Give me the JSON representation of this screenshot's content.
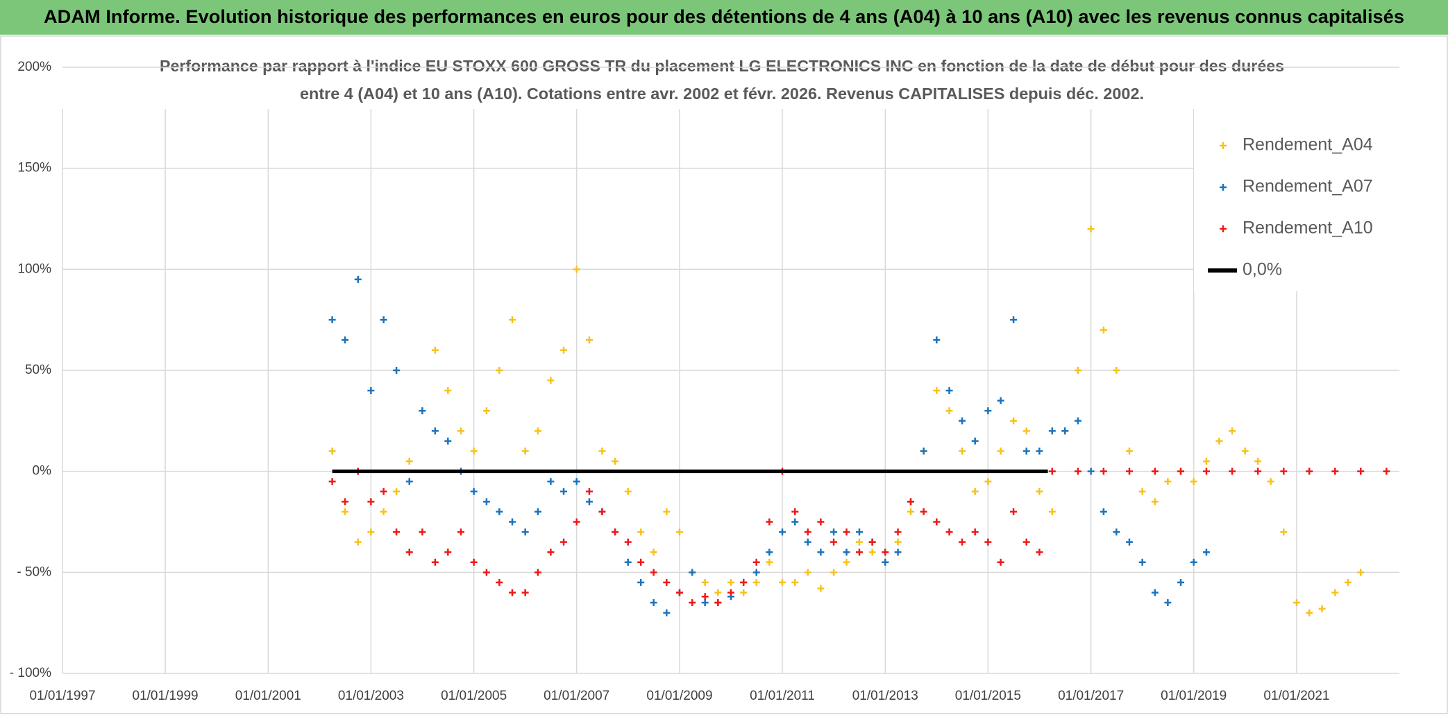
{
  "header": {
    "title": "ADAM Informe. Evolution historique des performances en euros pour des détentions de 4 ans (A04) à 10 ans (A10) avec les revenus connus capitalisés"
  },
  "chart_data": {
    "type": "scatter",
    "subtitle": [
      "Performance par rapport à l'indice EU STOXX 600 GROSS TR  du placement LG ELECTRONICS INC en fonction de la date de début pour des durées",
      "entre 4 (A04) et 10 ans (A10). Cotations entre avr. 2002 et févr. 2026. Revenus CAPITALISES depuis déc. 2002."
    ],
    "xlim": [
      "1997-01-01",
      "2023-01-01"
    ],
    "xticks": [
      {
        "value": "1997-01-01",
        "label": "01/01/1997"
      },
      {
        "value": "1999-01-01",
        "label": "01/01/1999"
      },
      {
        "value": "2001-01-01",
        "label": "01/01/2001"
      },
      {
        "value": "2003-01-01",
        "label": "01/01/2003"
      },
      {
        "value": "2005-01-01",
        "label": "01/01/2005"
      },
      {
        "value": "2007-01-01",
        "label": "01/01/2007"
      },
      {
        "value": "2009-01-01",
        "label": "01/01/2009"
      },
      {
        "value": "2011-01-01",
        "label": "01/01/2011"
      },
      {
        "value": "2013-01-01",
        "label": "01/01/2013"
      },
      {
        "value": "2015-01-01",
        "label": "01/01/2015"
      },
      {
        "value": "2017-01-01",
        "label": "01/01/2017"
      },
      {
        "value": "2019-01-01",
        "label": "01/01/2019"
      },
      {
        "value": "2021-01-01",
        "label": "01/01/2021"
      }
    ],
    "ylim": [
      -100,
      200
    ],
    "yticks": [
      {
        "value": -100,
        "label": "- 100%"
      },
      {
        "value": -50,
        "label": "- 50%"
      },
      {
        "value": 0,
        "label": "0%"
      },
      {
        "value": 50,
        "label": "50%"
      },
      {
        "value": 100,
        "label": "100%"
      },
      {
        "value": 150,
        "label": "150%"
      },
      {
        "value": 200,
        "label": "200%"
      }
    ],
    "grid": true,
    "legend": "upper right",
    "series": [
      {
        "name": "Rendement_A04",
        "color": "#f7c21a",
        "x": [
          "2002-04-01",
          "2002-07-01",
          "2002-10-01",
          "2003-01-01",
          "2003-04-01",
          "2003-07-01",
          "2003-10-01",
          "2004-01-01",
          "2004-04-01",
          "2004-07-01",
          "2004-10-01",
          "2005-01-01",
          "2005-04-01",
          "2005-07-01",
          "2005-10-01",
          "2006-01-01",
          "2006-04-01",
          "2006-07-01",
          "2006-10-01",
          "2007-01-01",
          "2007-04-01",
          "2007-07-01",
          "2007-10-01",
          "2008-01-01",
          "2008-04-01",
          "2008-07-01",
          "2008-10-01",
          "2009-01-01",
          "2009-04-01",
          "2009-07-01",
          "2009-10-01",
          "2010-01-01",
          "2010-04-01",
          "2010-07-01",
          "2010-10-01",
          "2011-01-01",
          "2011-04-01",
          "2011-07-01",
          "2011-10-01",
          "2012-01-01",
          "2012-04-01",
          "2012-07-01",
          "2012-10-01",
          "2013-01-01",
          "2013-04-01",
          "2013-07-01",
          "2013-10-01",
          "2014-01-01",
          "2014-04-01",
          "2014-07-01",
          "2014-10-01",
          "2015-01-01",
          "2015-04-01",
          "2015-07-01",
          "2015-10-01",
          "2016-01-01",
          "2016-04-01",
          "2016-07-01",
          "2016-10-01",
          "2017-01-01",
          "2017-04-01",
          "2017-07-01",
          "2017-10-01",
          "2018-01-01",
          "2018-04-01",
          "2018-07-01",
          "2018-10-01",
          "2019-01-01",
          "2019-04-01",
          "2019-07-01",
          "2019-10-01",
          "2020-01-01",
          "2020-04-01",
          "2020-07-01",
          "2020-10-01",
          "2021-01-01",
          "2021-04-01",
          "2021-07-01",
          "2021-10-01",
          "2022-01-01",
          "2022-04-01"
        ],
        "values": [
          10,
          -20,
          -35,
          -30,
          -20,
          -10,
          5,
          30,
          60,
          40,
          20,
          10,
          30,
          50,
          75,
          10,
          20,
          45,
          60,
          100,
          65,
          10,
          5,
          -10,
          -30,
          -40,
          -20,
          -30,
          -50,
          -55,
          -60,
          -55,
          -60,
          -55,
          -45,
          -55,
          -55,
          -50,
          -58,
          -50,
          -45,
          -35,
          -40,
          -45,
          -35,
          -20,
          10,
          40,
          30,
          10,
          -10,
          -5,
          10,
          25,
          20,
          -10,
          -20,
          20,
          50,
          120,
          70,
          50,
          10,
          -10,
          -15,
          -5,
          0,
          -5,
          5,
          15,
          20,
          10,
          5,
          -5,
          -30,
          -65,
          -70,
          -68,
          -60,
          -55,
          -50
        ]
      },
      {
        "name": "Rendement_A07",
        "color": "#1a73c0",
        "x": [
          "2002-04-01",
          "2002-07-01",
          "2002-10-01",
          "2003-01-01",
          "2003-04-01",
          "2003-07-01",
          "2003-10-01",
          "2004-01-01",
          "2004-04-01",
          "2004-07-01",
          "2004-10-01",
          "2005-01-01",
          "2005-04-01",
          "2005-07-01",
          "2005-10-01",
          "2006-01-01",
          "2006-04-01",
          "2006-07-01",
          "2006-10-01",
          "2007-01-01",
          "2007-04-01",
          "2007-07-01",
          "2007-10-01",
          "2008-01-01",
          "2008-04-01",
          "2008-07-01",
          "2008-10-01",
          "2009-01-01",
          "2009-04-01",
          "2009-07-01",
          "2009-10-01",
          "2010-01-01",
          "2010-04-01",
          "2010-07-01",
          "2010-10-01",
          "2011-01-01",
          "2011-04-01",
          "2011-07-01",
          "2011-10-01",
          "2012-01-01",
          "2012-04-01",
          "2012-07-01",
          "2012-10-01",
          "2013-01-01",
          "2013-04-01",
          "2013-07-01",
          "2013-10-01",
          "2014-01-01",
          "2014-04-01",
          "2014-07-01",
          "2014-10-01",
          "2015-01-01",
          "2015-04-01",
          "2015-07-01",
          "2015-10-01",
          "2016-01-01",
          "2016-04-01",
          "2016-07-01",
          "2016-10-01",
          "2017-01-01",
          "2017-04-01",
          "2017-07-01",
          "2017-10-01",
          "2018-01-01",
          "2018-04-01",
          "2018-07-01",
          "2018-10-01",
          "2019-01-01",
          "2019-04-01"
        ],
        "values": [
          75,
          65,
          95,
          40,
          75,
          50,
          -5,
          30,
          20,
          15,
          0,
          -10,
          -15,
          -20,
          -25,
          -30,
          -20,
          -5,
          -10,
          -5,
          -15,
          -20,
          -30,
          -45,
          -55,
          -65,
          -70,
          -60,
          -50,
          -65,
          -65,
          -62,
          -55,
          -50,
          -40,
          -30,
          -25,
          -35,
          -40,
          -30,
          -40,
          -30,
          -35,
          -45,
          -40,
          -15,
          10,
          65,
          40,
          25,
          15,
          30,
          35,
          75,
          10,
          10,
          20,
          20,
          25,
          0,
          -20,
          -30,
          -35,
          -45,
          -60,
          -65,
          -55,
          -45,
          -40
        ]
      },
      {
        "name": "Rendement_A10",
        "color": "#f01818",
        "x": [
          "2002-04-01",
          "2002-07-01",
          "2002-10-01",
          "2003-01-01",
          "2003-04-01",
          "2003-07-01",
          "2003-10-01",
          "2004-01-01",
          "2004-04-01",
          "2004-07-01",
          "2004-10-01",
          "2005-01-01",
          "2005-04-01",
          "2005-07-01",
          "2005-10-01",
          "2006-01-01",
          "2006-04-01",
          "2006-07-01",
          "2006-10-01",
          "2007-01-01",
          "2007-04-01",
          "2007-07-01",
          "2007-10-01",
          "2008-01-01",
          "2008-04-01",
          "2008-07-01",
          "2008-10-01",
          "2009-01-01",
          "2009-04-01",
          "2009-07-01",
          "2009-10-01",
          "2010-01-01",
          "2010-04-01",
          "2010-07-01",
          "2010-10-01",
          "2011-01-01",
          "2011-04-01",
          "2011-07-01",
          "2011-10-01",
          "2012-01-01",
          "2012-04-01",
          "2012-07-01",
          "2012-10-01",
          "2013-01-01",
          "2013-04-01",
          "2013-07-01",
          "2013-10-01",
          "2014-01-01",
          "2014-04-01",
          "2014-07-01",
          "2014-10-01",
          "2015-01-01",
          "2015-04-01",
          "2015-07-01",
          "2015-10-01",
          "2016-01-01",
          "2016-04-01",
          "2016-10-01",
          "2017-04-01",
          "2017-10-01",
          "2018-04-01",
          "2018-10-01",
          "2019-04-01",
          "2019-10-01",
          "2020-04-01",
          "2020-10-01",
          "2021-04-01",
          "2021-10-01",
          "2022-04-01",
          "2022-10-01"
        ],
        "values": [
          -5,
          -15,
          0,
          -15,
          -10,
          -30,
          -40,
          -30,
          -45,
          -40,
          -30,
          -45,
          -50,
          -55,
          -60,
          -60,
          -50,
          -40,
          -35,
          -25,
          -10,
          -20,
          -30,
          -35,
          -45,
          -50,
          -55,
          -60,
          -65,
          -62,
          -65,
          -60,
          -55,
          -45,
          -25,
          0,
          -20,
          -30,
          -25,
          -35,
          -30,
          -40,
          -35,
          -40,
          -30,
          -15,
          -20,
          -25,
          -30,
          -35,
          -30,
          -35,
          -45,
          -20,
          -35,
          -40,
          0,
          0,
          0,
          0,
          0,
          0,
          0,
          0,
          0,
          0,
          0,
          0,
          0,
          0
        ]
      },
      {
        "name": "0,0%",
        "color": "#000000",
        "type": "line",
        "x": [
          "2002-04-01",
          "2016-03-01"
        ],
        "values": [
          0,
          0
        ]
      }
    ]
  }
}
